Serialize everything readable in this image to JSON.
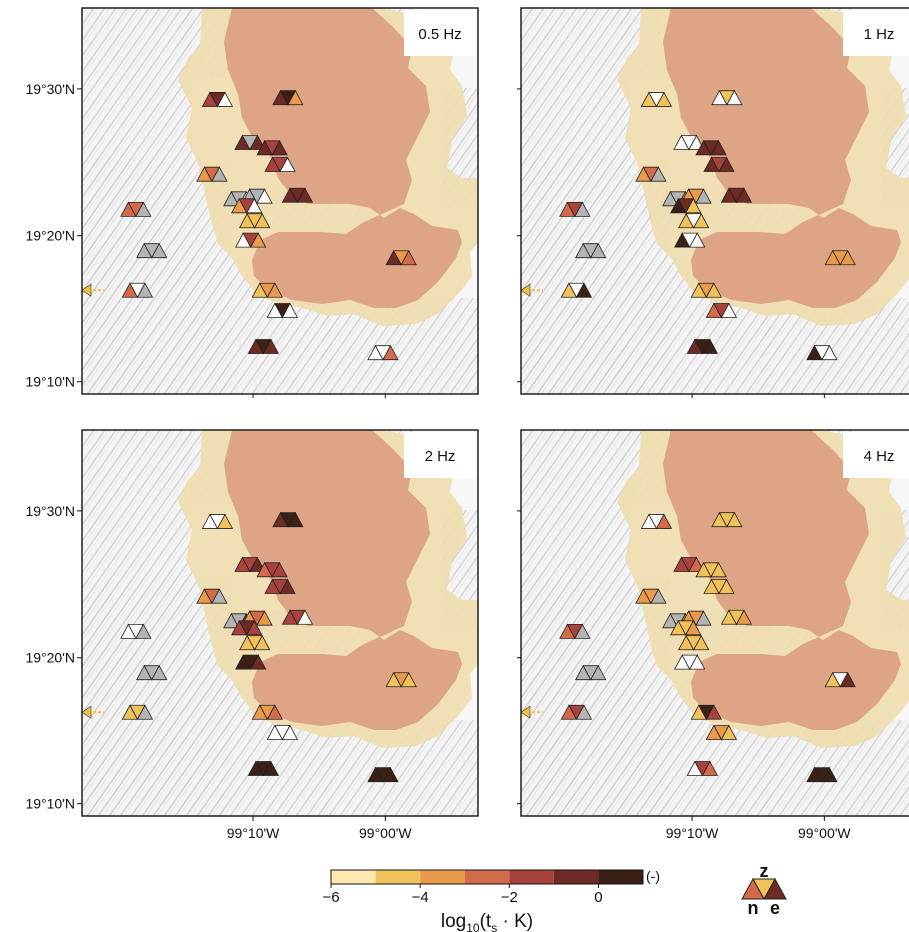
{
  "chart_data": {
    "type": "scatter",
    "description_units": "log10(ts·K) per station component",
    "panels": [
      {
        "label": "0.5 Hz"
      },
      {
        "label": "1 Hz"
      },
      {
        "label": "2 Hz"
      },
      {
        "label": "4 Hz"
      }
    ],
    "y_ticks": [
      "19°30'N",
      "19°20'N",
      "19°10'N"
    ],
    "y_tick_values": [
      19.5,
      19.333,
      19.167
    ],
    "x_ticks": [
      "99°10'W",
      "99°00'W"
    ],
    "x_tick_values": [
      -99.167,
      -99.0
    ],
    "colorbar": {
      "ticks": [
        "−6",
        "−4",
        "−2",
        "0"
      ],
      "tick_values": [
        -6,
        -4,
        -2,
        0
      ],
      "range": [
        -6,
        0
      ],
      "bins": [
        "#fbe9b0",
        "#f1c25a",
        "#e99a4a",
        "#d36a4a",
        "#a9423c",
        "#6e2a24",
        "#3a2016"
      ],
      "label": "log10(ts · K)",
      "label_main": "log",
      "label_sub": "10",
      "label_paren_open": "(t",
      "label_sub2": "s",
      "label_rest": " · K)",
      "extra_label": "(-)"
    },
    "legend": {
      "z": "z",
      "n": "n",
      "e": "e"
    },
    "colors": {
      "lake_outer": "#f0dcae",
      "lake_inner": "#d99b7e",
      "arrow": "#f0c040",
      "grey": "#b4b4b4",
      "white": "#ffffff"
    }
  }
}
